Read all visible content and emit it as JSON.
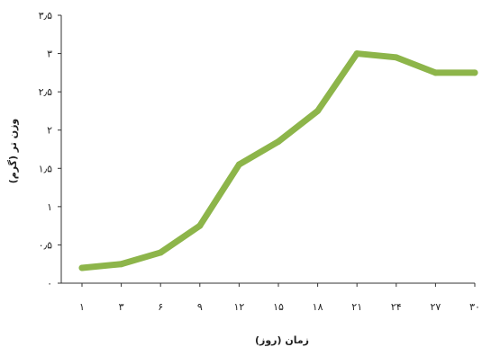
{
  "chart_data": {
    "type": "line",
    "title": "",
    "xlabel": "زمان (روز)",
    "ylabel": "وزن تر (گرم)",
    "categories": [
      "۱",
      "۳",
      "۶",
      "۹",
      "۱۲",
      "۱۵",
      "۱۸",
      "۲۱",
      "۲۴",
      "۲۷",
      "۳۰"
    ],
    "series": [
      {
        "values": [
          0.2,
          0.25,
          0.4,
          0.75,
          1.55,
          1.85,
          2.25,
          3.0,
          2.95,
          2.75,
          2.75
        ]
      }
    ],
    "ylim": [
      0,
      3.5
    ],
    "y_ticks": [
      {
        "value": 0,
        "label": "۰"
      },
      {
        "value": 0.5,
        "label": "۰٫۵"
      },
      {
        "value": 1,
        "label": "۱"
      },
      {
        "value": 1.5,
        "label": "۱٫۵"
      },
      {
        "value": 2,
        "label": "۲"
      },
      {
        "value": 2.5,
        "label": "۲٫۵"
      },
      {
        "value": 3,
        "label": "۳"
      },
      {
        "value": 3.5,
        "label": "۳٫۵"
      }
    ],
    "line_color": "#8db54a",
    "axis_color": "#333333",
    "grid": false,
    "legend": "none"
  }
}
